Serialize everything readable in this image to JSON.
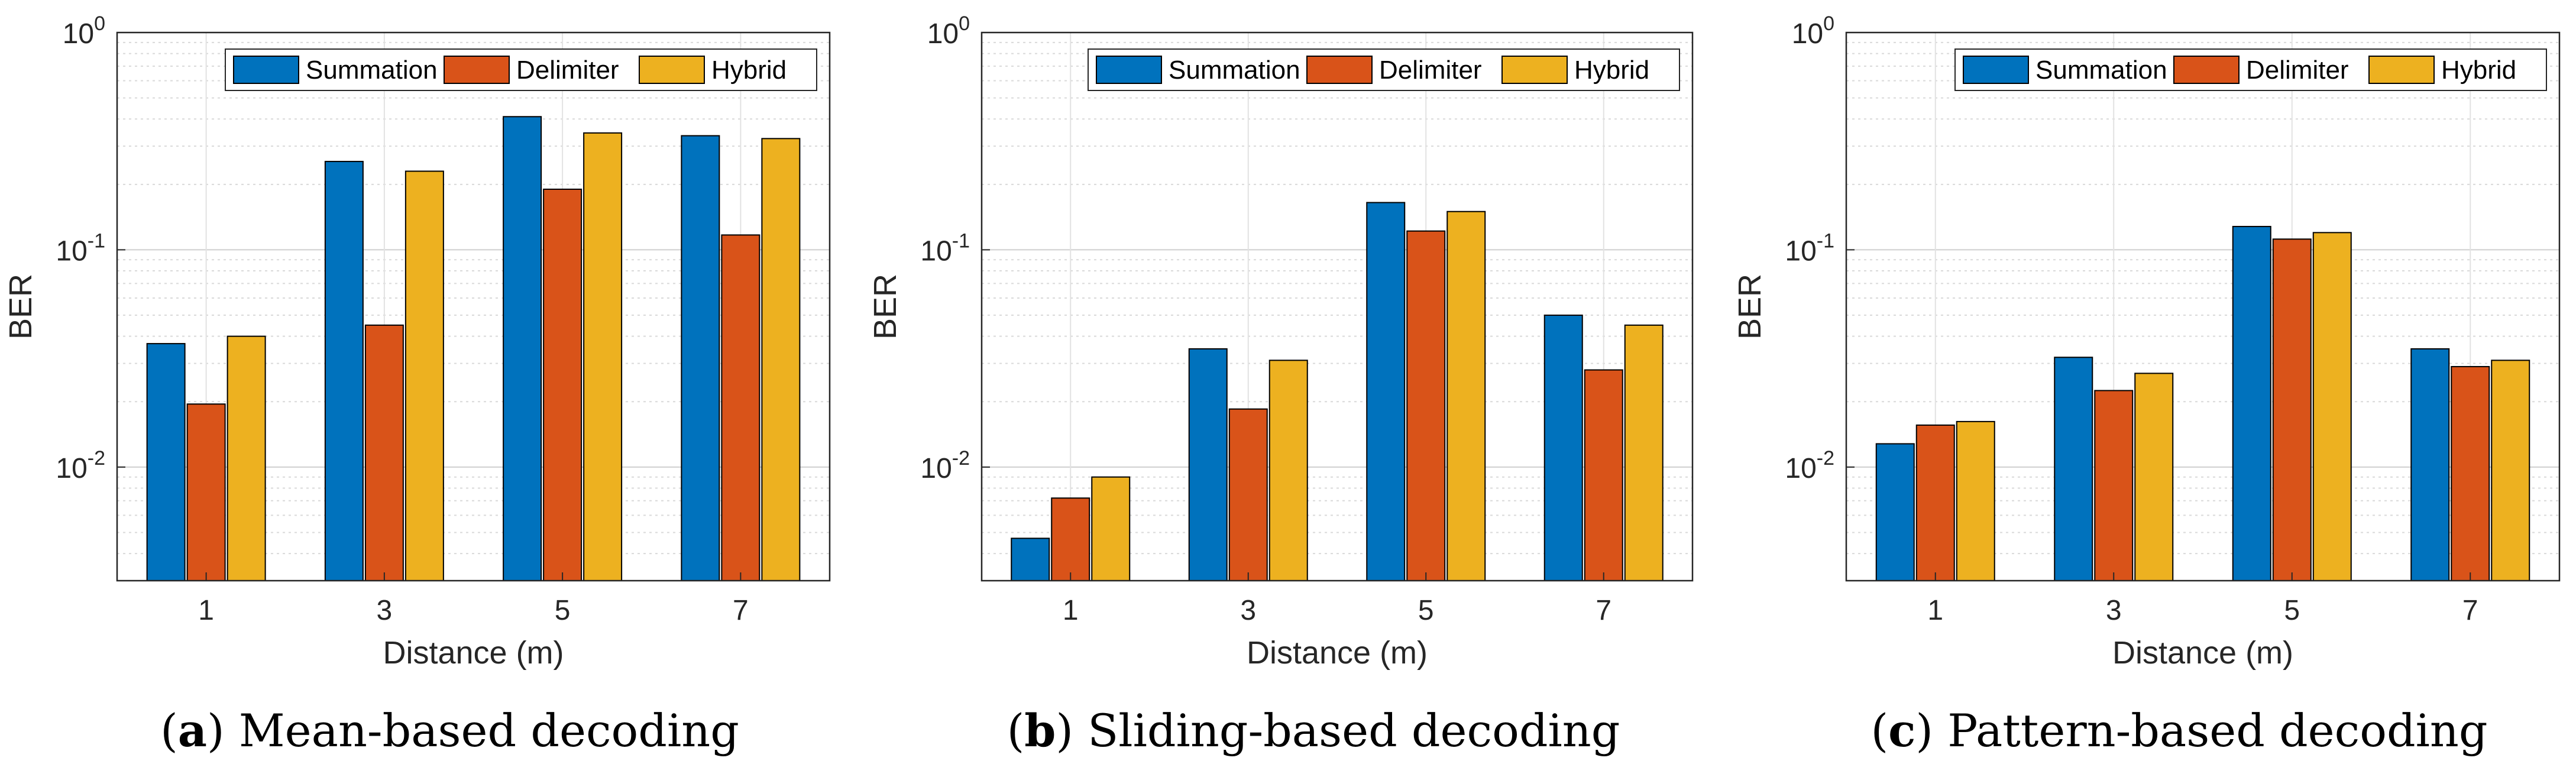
{
  "colors": {
    "summation": "#0072BD",
    "delimiter": "#D95319",
    "hybrid": "#EDB120",
    "grid": "#d9d9d9",
    "axis": "#262626"
  },
  "chart_data": [
    {
      "type": "bar",
      "y_scale": "log",
      "ylim": [
        0.003,
        1
      ],
      "ylabel": "BER",
      "xlabel": "Distance (m)",
      "categories": [
        "1",
        "3",
        "5",
        "7"
      ],
      "y_ticks": [
        {
          "value": 0.01,
          "base": "10",
          "exp": "-2"
        },
        {
          "value": 0.1,
          "base": "10",
          "exp": "-1"
        },
        {
          "value": 1,
          "base": "10",
          "exp": "0"
        }
      ],
      "legend_position": "top-right",
      "grid": true,
      "caption": {
        "open": "(",
        "letter": "a",
        "close": ")",
        "text": " Mean-based decoding"
      },
      "series": [
        {
          "name": "Summation",
          "color_key": "summation",
          "values": [
            0.037,
            0.255,
            0.41,
            0.335
          ]
        },
        {
          "name": "Delimiter",
          "color_key": "delimiter",
          "values": [
            0.0195,
            0.045,
            0.19,
            0.117
          ]
        },
        {
          "name": "Hybrid",
          "color_key": "hybrid",
          "values": [
            0.04,
            0.23,
            0.345,
            0.325
          ]
        }
      ]
    },
    {
      "type": "bar",
      "y_scale": "log",
      "ylim": [
        0.003,
        1
      ],
      "ylabel": "BER",
      "xlabel": "Distance (m)",
      "categories": [
        "1",
        "3",
        "5",
        "7"
      ],
      "y_ticks": [
        {
          "value": 0.01,
          "base": "10",
          "exp": "-2"
        },
        {
          "value": 0.1,
          "base": "10",
          "exp": "-1"
        },
        {
          "value": 1,
          "base": "10",
          "exp": "0"
        }
      ],
      "legend_position": "top-right",
      "grid": true,
      "caption": {
        "open": "(",
        "letter": "b",
        "close": ")",
        "text": " Sliding-based decoding"
      },
      "series": [
        {
          "name": "Summation",
          "color_key": "summation",
          "values": [
            0.0047,
            0.035,
            0.165,
            0.05
          ]
        },
        {
          "name": "Delimiter",
          "color_key": "delimiter",
          "values": [
            0.0072,
            0.0185,
            0.122,
            0.028
          ]
        },
        {
          "name": "Hybrid",
          "color_key": "hybrid",
          "values": [
            0.009,
            0.031,
            0.15,
            0.045
          ]
        }
      ]
    },
    {
      "type": "bar",
      "y_scale": "log",
      "ylim": [
        0.003,
        1
      ],
      "ylabel": "BER",
      "xlabel": "Distance (m)",
      "categories": [
        "1",
        "3",
        "5",
        "7"
      ],
      "y_ticks": [
        {
          "value": 0.01,
          "base": "10",
          "exp": "-2"
        },
        {
          "value": 0.1,
          "base": "10",
          "exp": "-1"
        },
        {
          "value": 1,
          "base": "10",
          "exp": "0"
        }
      ],
      "legend_position": "top-right",
      "grid": true,
      "caption": {
        "open": "(",
        "letter": "c",
        "close": ")",
        "text": " Pattern-based decoding"
      },
      "series": [
        {
          "name": "Summation",
          "color_key": "summation",
          "values": [
            0.0128,
            0.032,
            0.128,
            0.035
          ]
        },
        {
          "name": "Delimiter",
          "color_key": "delimiter",
          "values": [
            0.0156,
            0.0225,
            0.112,
            0.029
          ]
        },
        {
          "name": "Hybrid",
          "color_key": "hybrid",
          "values": [
            0.0162,
            0.027,
            0.12,
            0.031
          ]
        }
      ]
    }
  ]
}
